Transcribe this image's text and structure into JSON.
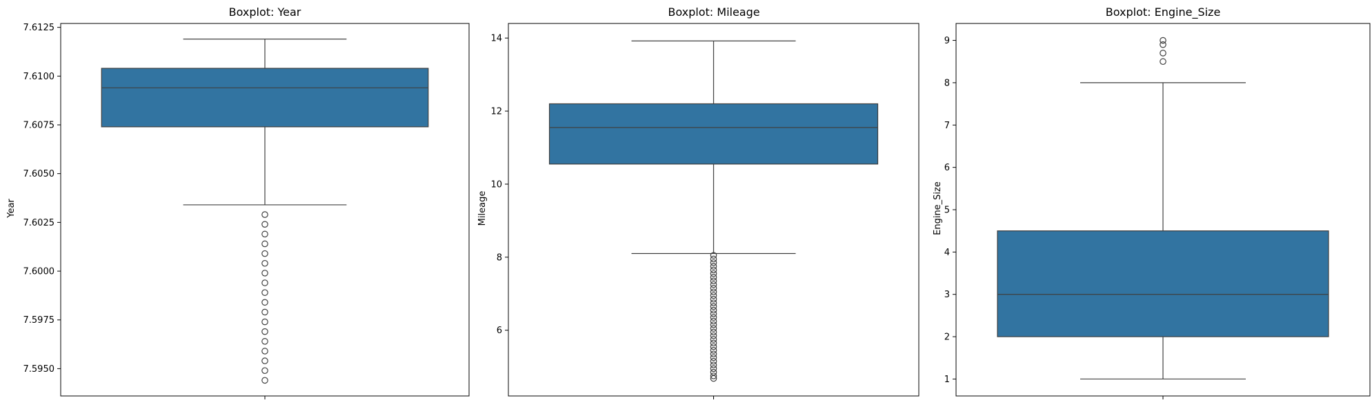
{
  "chart_data": [
    {
      "type": "box",
      "title": "Boxplot: Year",
      "ylabel": "Year",
      "ylim": [
        7.5936,
        7.6127
      ],
      "yticks": [
        {
          "value": 7.595,
          "label": "7.5950"
        },
        {
          "value": 7.5975,
          "label": "7.5975"
        },
        {
          "value": 7.6,
          "label": "7.6000"
        },
        {
          "value": 7.6025,
          "label": "7.6025"
        },
        {
          "value": 7.605,
          "label": "7.6050"
        },
        {
          "value": 7.6075,
          "label": "7.6075"
        },
        {
          "value": 7.61,
          "label": "7.6100"
        },
        {
          "value": 7.6125,
          "label": "7.6125"
        }
      ],
      "box": {
        "whisker_low": 7.6034,
        "q1": 7.6074,
        "median": 7.6094,
        "q3": 7.6104,
        "whisker_high": 7.6119
      },
      "outliers": [
        7.6029,
        7.6024,
        7.6019,
        7.6014,
        7.6009,
        7.6004,
        7.5999,
        7.5994,
        7.5989,
        7.5984,
        7.5979,
        7.5974,
        7.5969,
        7.5964,
        7.5959,
        7.5954,
        7.5949,
        7.5944
      ],
      "color": "#3274a1"
    },
    {
      "type": "box",
      "title": "Boxplot: Mileage",
      "ylabel": "Mileage",
      "ylim": [
        4.2,
        14.4
      ],
      "yticks": [
        {
          "value": 6,
          "label": "6"
        },
        {
          "value": 8,
          "label": "8"
        },
        {
          "value": 10,
          "label": "10"
        },
        {
          "value": 12,
          "label": "12"
        },
        {
          "value": 14,
          "label": "14"
        }
      ],
      "box": {
        "whisker_low": 8.1,
        "q1": 10.55,
        "median": 11.55,
        "q3": 12.2,
        "whisker_high": 13.92
      },
      "outliers": [
        8.05,
        7.95,
        7.85,
        7.75,
        7.65,
        7.55,
        7.45,
        7.35,
        7.25,
        7.15,
        7.05,
        6.95,
        6.85,
        6.75,
        6.65,
        6.55,
        6.45,
        6.35,
        6.25,
        6.15,
        6.05,
        5.95,
        5.85,
        5.75,
        5.65,
        5.55,
        5.45,
        5.35,
        5.25,
        5.15,
        5.05,
        4.95,
        4.85,
        4.75,
        4.68
      ],
      "color": "#3274a1"
    },
    {
      "type": "box",
      "title": "Boxplot: Engine_Size",
      "ylabel": "Engine_Size",
      "ylim": [
        0.6,
        9.4
      ],
      "yticks": [
        {
          "value": 1,
          "label": "1"
        },
        {
          "value": 2,
          "label": "2"
        },
        {
          "value": 3,
          "label": "3"
        },
        {
          "value": 4,
          "label": "4"
        },
        {
          "value": 5,
          "label": "5"
        },
        {
          "value": 6,
          "label": "6"
        },
        {
          "value": 7,
          "label": "7"
        },
        {
          "value": 8,
          "label": "8"
        },
        {
          "value": 9,
          "label": "9"
        }
      ],
      "box": {
        "whisker_low": 1.0,
        "q1": 2.0,
        "median": 3.0,
        "q3": 4.5,
        "whisker_high": 8.0
      },
      "outliers": [
        8.5,
        8.7,
        8.9,
        9.0
      ],
      "color": "#3274a1"
    }
  ]
}
